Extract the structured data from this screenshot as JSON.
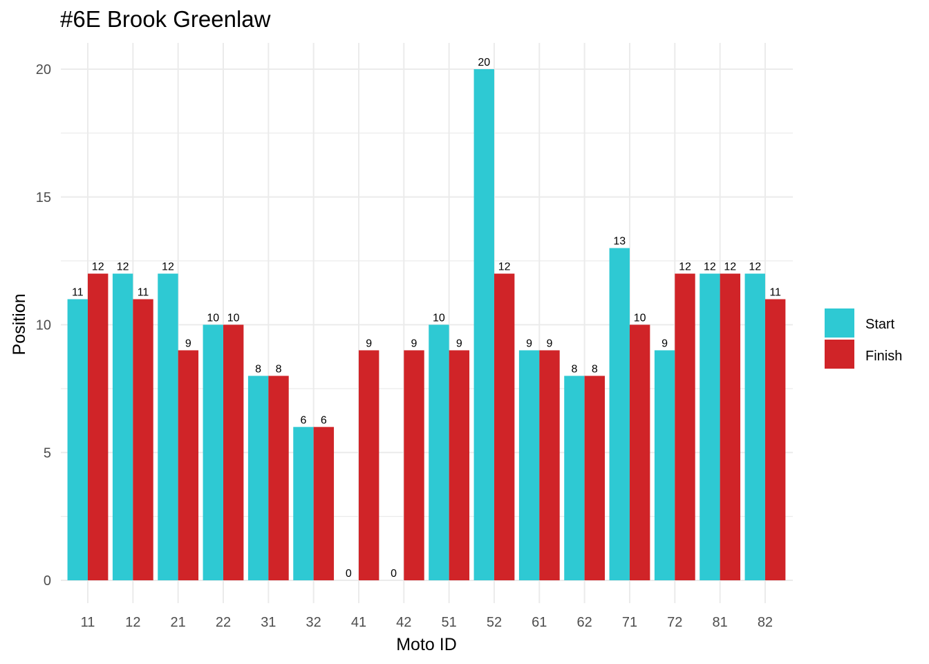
{
  "chart_data": {
    "type": "bar",
    "title": "#6E Brook Greenlaw",
    "xlabel": "Moto ID",
    "ylabel": "Position",
    "categories": [
      "11",
      "12",
      "21",
      "22",
      "31",
      "32",
      "41",
      "42",
      "51",
      "52",
      "61",
      "62",
      "71",
      "72",
      "81",
      "82"
    ],
    "series": [
      {
        "name": "Start",
        "color": "#2ec9d3",
        "values": [
          11,
          12,
          12,
          10,
          8,
          6,
          0,
          0,
          10,
          20,
          9,
          8,
          13,
          9,
          12,
          12
        ]
      },
      {
        "name": "Finish",
        "color": "#d02428",
        "values": [
          12,
          11,
          9,
          10,
          8,
          6,
          9,
          9,
          9,
          12,
          9,
          8,
          10,
          12,
          12,
          11
        ]
      }
    ],
    "ylim": [
      0,
      21
    ],
    "yticks": [
      0,
      5,
      10,
      15,
      20
    ],
    "grid": true,
    "legend_position": "right"
  }
}
